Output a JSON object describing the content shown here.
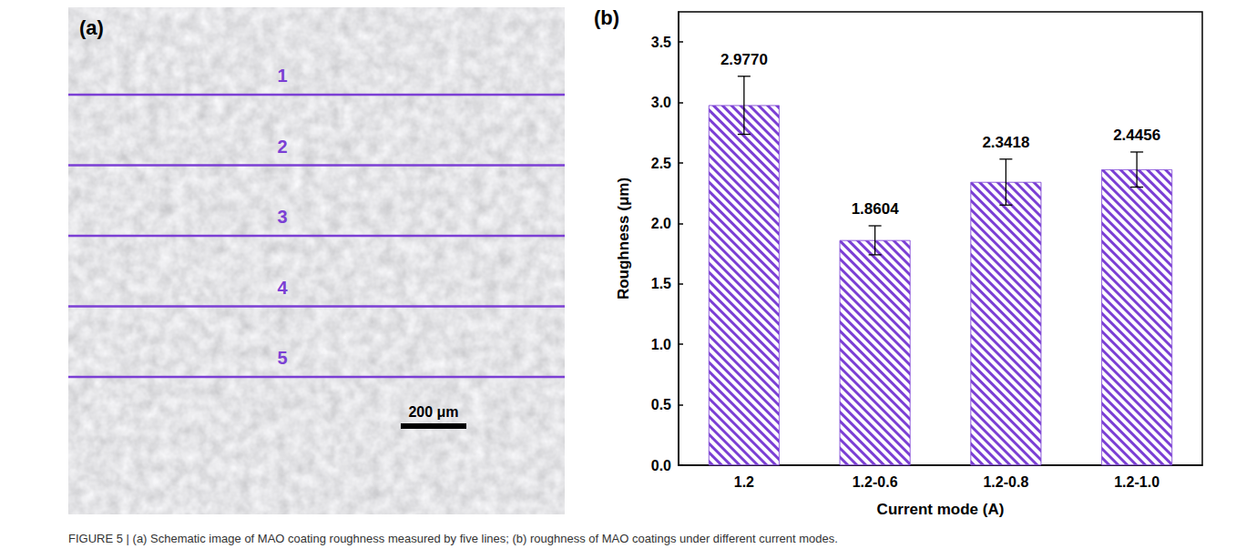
{
  "panel_a": {
    "label": "(a)",
    "line_labels": [
      "1",
      "2",
      "3",
      "4",
      "5"
    ],
    "scale_bar": "200 μm"
  },
  "chart_data": {
    "panel_label": "(b)",
    "type": "bar",
    "x_label": "Current mode (A)",
    "y_label": "Roughness (μm)",
    "categories": [
      "1.2",
      "1.2-0.6",
      "1.2-0.8",
      "1.2-1.0"
    ],
    "values": [
      2.977,
      1.8604,
      2.3418,
      2.4456
    ],
    "value_labels": [
      "2.9770",
      "1.8604",
      "2.3418",
      "2.4456"
    ],
    "errors": [
      0.24,
      0.12,
      0.19,
      0.145
    ],
    "color": "#7b3fd4",
    "ylim": [
      0,
      3.75
    ],
    "yticks": [
      {
        "value": 0,
        "label": "0.0"
      },
      0.5,
      {
        "value": 1,
        "label": "1.0"
      },
      1.5,
      {
        "value": 2,
        "label": "2.0"
      },
      2.5,
      {
        "value": 3,
        "label": "3.0"
      },
      3.5
    ],
    "data_labels": true,
    "grid": false
  },
  "caption": "FIGURE 5 | (a) Schematic image of MAO coating roughness measured by five lines; (b) roughness of MAO coatings under different current modes."
}
